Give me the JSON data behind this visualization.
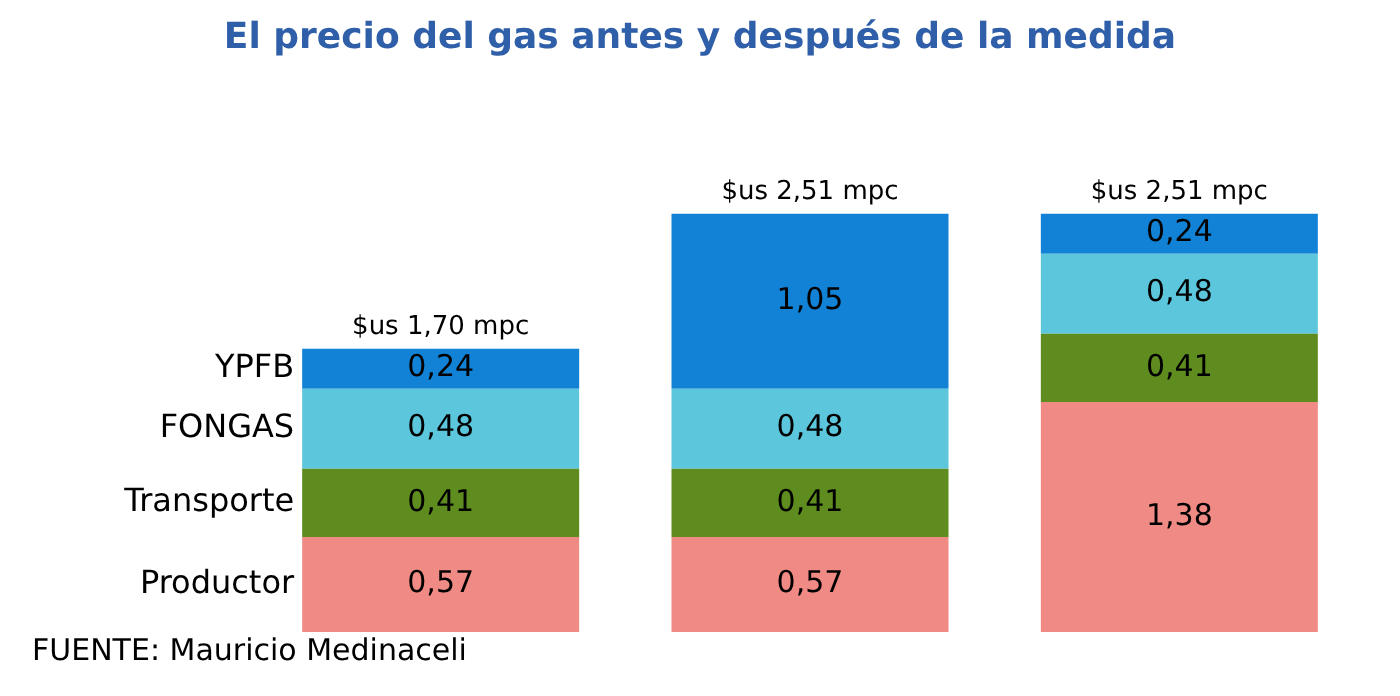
{
  "chart_data": {
    "type": "bar",
    "title": "El precio del gas antes y después de la medida",
    "categories": [
      null,
      null,
      null
    ],
    "stacked": true,
    "data_labels": true,
    "series": [
      {
        "name": "Productor",
        "color": "#f08a84",
        "values": [
          0.57,
          0.57,
          1.38
        ],
        "value_labels": [
          "0,57",
          "0,57",
          "1,38"
        ]
      },
      {
        "name": "Transporte",
        "color": "#5e8c1f",
        "values": [
          0.41,
          0.41,
          0.41
        ],
        "value_labels": [
          "0,41",
          "0,41",
          "0,41"
        ]
      },
      {
        "name": "FONGAS",
        "color": "#5cc6dc",
        "values": [
          0.48,
          0.48,
          0.48
        ],
        "value_labels": [
          "0,48",
          "0,48",
          "0,48"
        ]
      },
      {
        "name": "YPFB",
        "color": "#1282d6",
        "values": [
          0.24,
          1.05,
          0.24
        ],
        "value_labels": [
          "0,24",
          "1,05",
          "0,24"
        ]
      }
    ],
    "totals": [
      "$us 1,70 mpc",
      "$us 2,51 mpc",
      "$us 2,51 mpc"
    ],
    "annotations": [
      "FUENTE: Mauricio Medinaceli"
    ]
  }
}
